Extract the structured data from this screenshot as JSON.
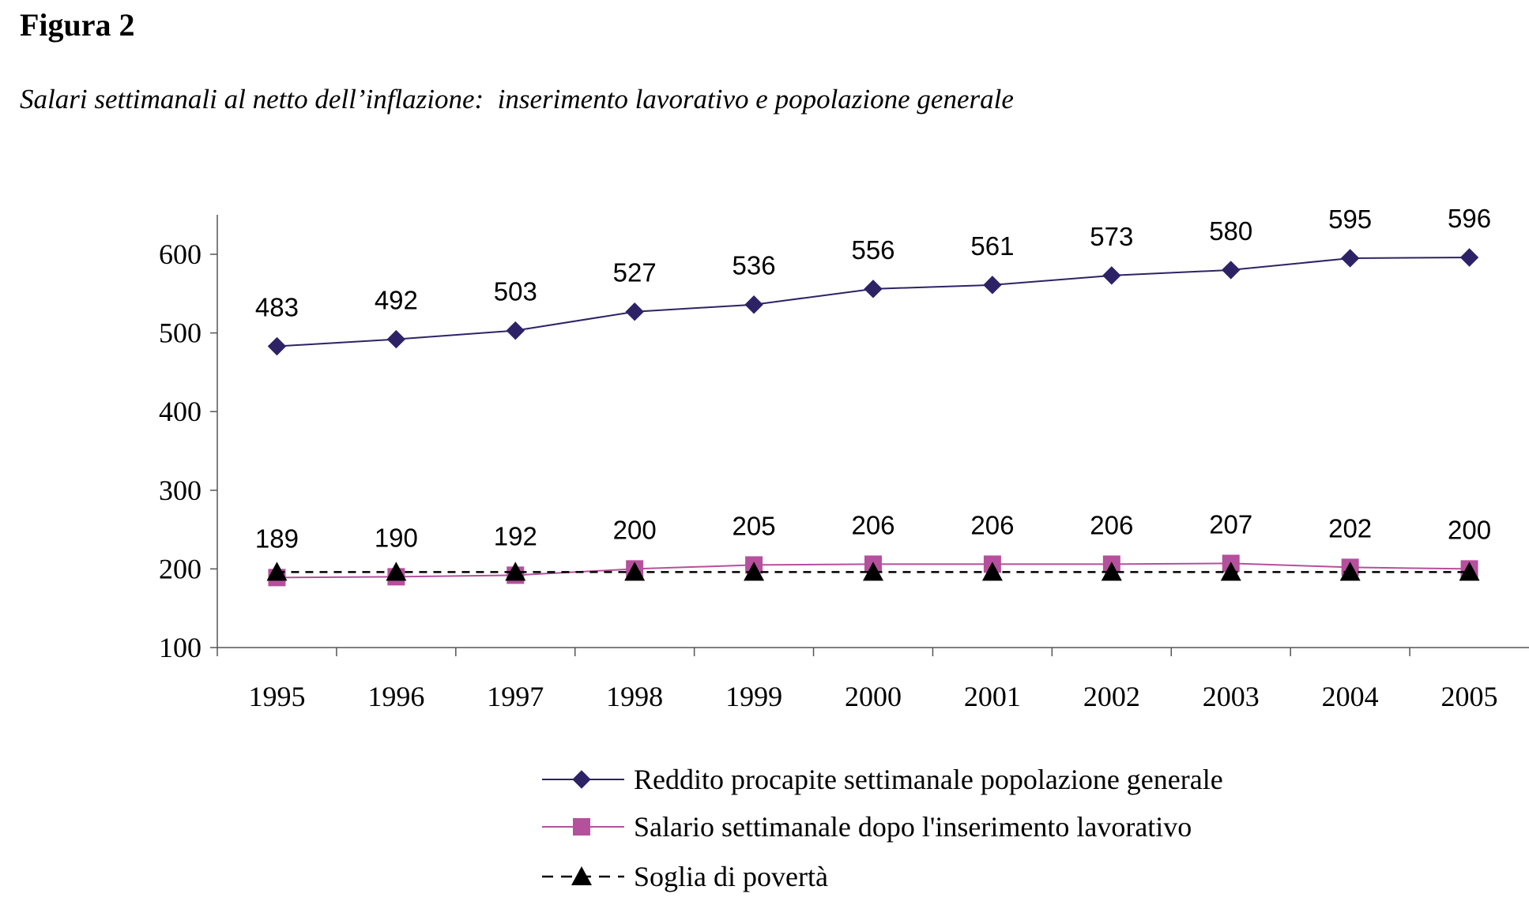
{
  "figure_label": "Figura 2",
  "chart_data": {
    "type": "line",
    "title": "Salari settimanali al netto dell’inflazione:  inserimento lavorativo e popolazione generale",
    "xlabel": "",
    "ylabel": "",
    "categories": [
      "1995",
      "1996",
      "1997",
      "1998",
      "1999",
      "2000",
      "2001",
      "2002",
      "2003",
      "2004",
      "2005"
    ],
    "ylim": [
      100,
      650
    ],
    "yticks": [
      100,
      200,
      300,
      400,
      500,
      600
    ],
    "grid": false,
    "legend_position": "bottom",
    "series": [
      {
        "name": "Reddito procapite settimanale popolazione generale",
        "values": [
          483,
          492,
          503,
          527,
          536,
          556,
          561,
          573,
          580,
          595,
          596
        ],
        "color": "#2e2266",
        "marker": "diamond",
        "line_style": "solid",
        "show_labels": true
      },
      {
        "name": "Salario settimanale dopo l'inserimento lavorativo",
        "values": [
          189,
          190,
          192,
          200,
          205,
          206,
          206,
          206,
          207,
          202,
          200
        ],
        "color": "#b5509c",
        "marker": "square",
        "line_style": "solid",
        "show_labels": true
      },
      {
        "name": "Soglia di povertà",
        "values": [
          196,
          196,
          196,
          196,
          196,
          196,
          196,
          196,
          196,
          196,
          196
        ],
        "color": "#000000",
        "marker": "triangle",
        "line_style": "dashed",
        "show_labels": false
      }
    ]
  }
}
